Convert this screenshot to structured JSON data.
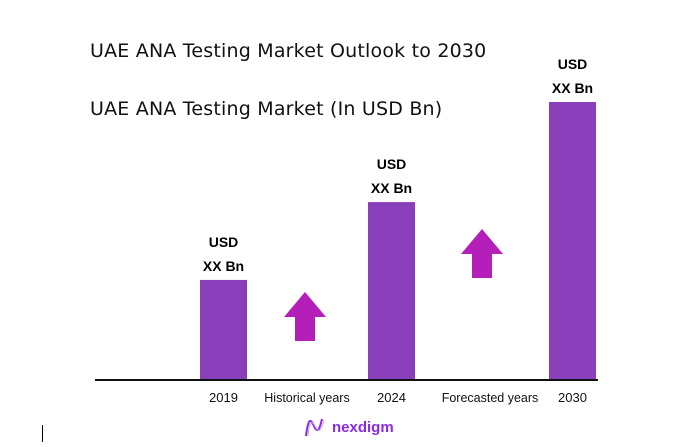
{
  "chart_data": {
    "type": "bar",
    "title": "UAE ANA Testing Market Outlook to 2030",
    "subtitle": "UAE ANA Testing Market (In USD Bn)",
    "categories": [
      "2019",
      "2024",
      "2030"
    ],
    "values": [
      36,
      64,
      100
    ],
    "data_labels": [
      [
        "USD",
        "XX Bn"
      ],
      [
        "USD",
        "XX Bn"
      ],
      [
        "USD",
        "XX Bn"
      ]
    ],
    "period_labels": [
      "Historical years",
      "Forecasted years"
    ],
    "ylim": [
      0,
      100
    ],
    "grid": false,
    "bar_color": "#8a3fba",
    "arrow_color": "#b41fba"
  },
  "logo": {
    "text": "nexdigm",
    "color": "#8a2be2"
  }
}
